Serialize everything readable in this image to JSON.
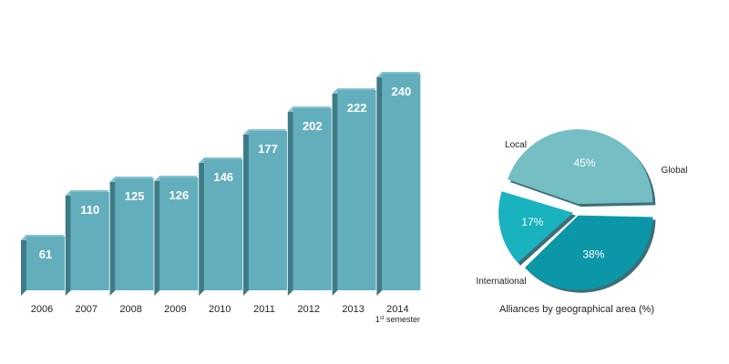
{
  "chart_data": [
    {
      "type": "bar",
      "categories": [
        "2006",
        "2007",
        "2008",
        "2009",
        "2010",
        "2011",
        "2012",
        "2013",
        "2014"
      ],
      "category_notes": [
        "",
        "",
        "",
        "",
        "",
        "",
        "",
        "",
        "1st semester"
      ],
      "values": [
        61,
        110,
        125,
        126,
        146,
        177,
        202,
        222,
        240
      ],
      "title": "",
      "xlabel": "",
      "ylabel": "",
      "ylim": [
        0,
        240
      ],
      "grid": false,
      "bar_color": "#63aebd",
      "bar_side_color": "#3d7c86",
      "bar_top_color": "#86c2cd",
      "value_label_color": "#ffffff"
    },
    {
      "type": "pie",
      "title": "Alliances by geographical area (%)",
      "slices": [
        {
          "label": "Global",
          "value": 45,
          "value_label": "45%",
          "color": "#75bec3"
        },
        {
          "label": "International",
          "value": 38,
          "value_label": "38%",
          "color": "#0b97a7"
        },
        {
          "label": "Local",
          "value": 17,
          "value_label": "17%",
          "color": "#19b2bf"
        }
      ],
      "exploded": "Global",
      "legend": "none"
    }
  ]
}
